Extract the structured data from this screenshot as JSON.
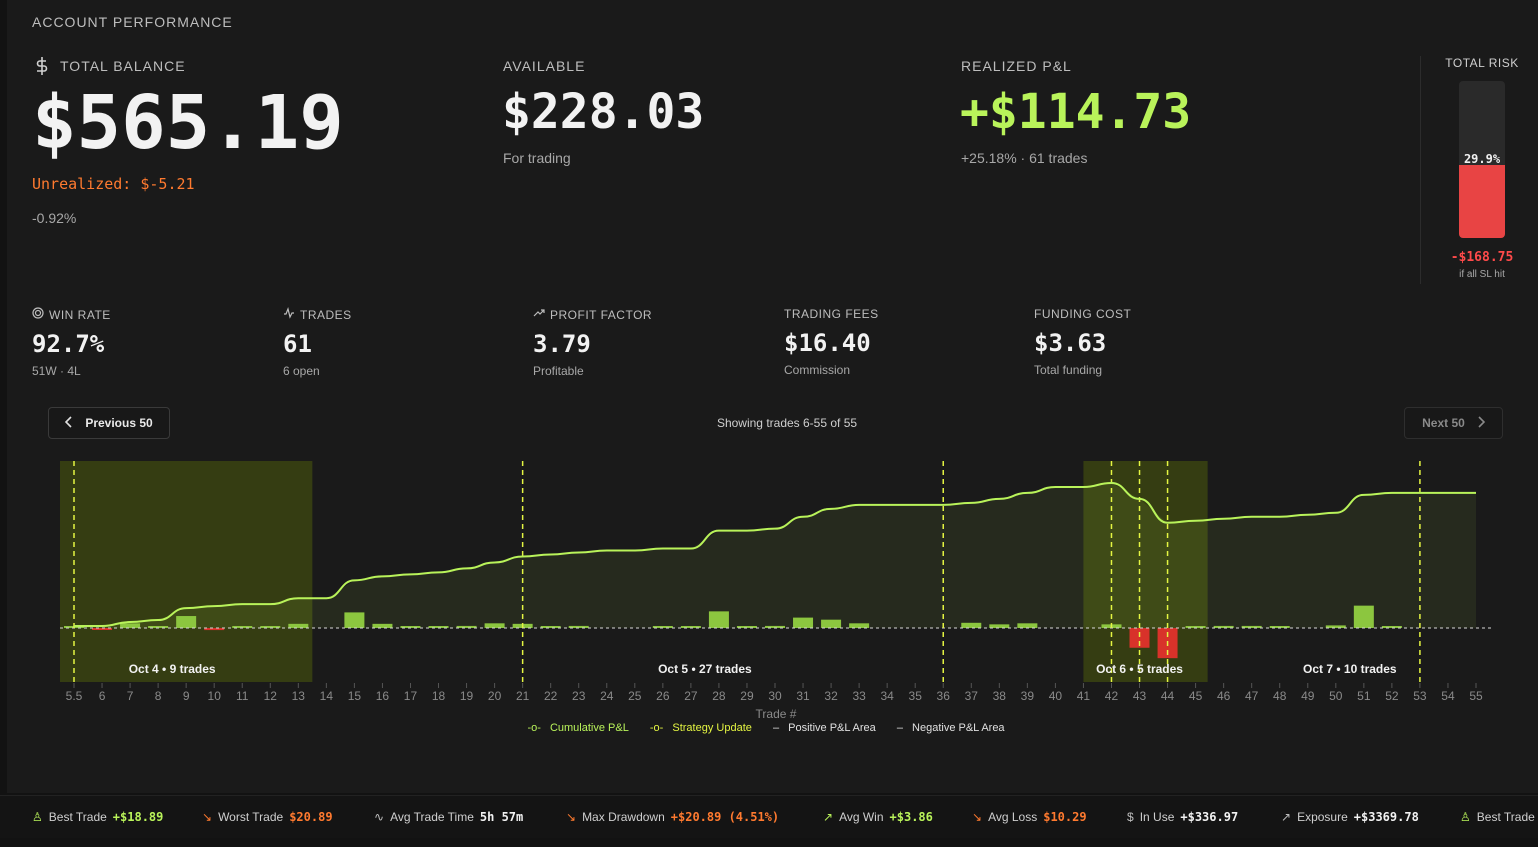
{
  "header": {
    "title": "ACCOUNT PERFORMANCE"
  },
  "balance": {
    "label": "TOTAL BALANCE",
    "value": "$565.19",
    "unrealized": "Unrealized: $-5.21",
    "change": "-0.92%"
  },
  "available": {
    "label": "AVAILABLE",
    "value": "$228.03",
    "sub": "For trading"
  },
  "realized": {
    "label": "REALIZED P&L",
    "value": "+$114.73",
    "sub": "+25.18% · 61 trades"
  },
  "risk": {
    "label": "TOTAL RISK",
    "percent": "29.9%",
    "fill_fraction": 0.299,
    "loss": "-$168.75",
    "note": "if all SL hit"
  },
  "stats": [
    {
      "icon": "target-icon",
      "label": "WIN RATE",
      "value": "92.7%",
      "sub": "51W · 4L"
    },
    {
      "icon": "activity-icon",
      "label": "TRADES",
      "value": "61",
      "sub": "6 open"
    },
    {
      "icon": "trending-up-icon",
      "label": "PROFIT FACTOR",
      "value": "3.79",
      "sub": "Profitable"
    },
    {
      "icon": "",
      "label": "TRADING FEES",
      "value": "$16.40",
      "sub": "Commission"
    },
    {
      "icon": "",
      "label": "FUNDING COST",
      "value": "$3.63",
      "sub": "Total funding"
    }
  ],
  "pager": {
    "prev": "Previous 50",
    "showing": "Showing trades 6-55 of 55",
    "next": "Next 50"
  },
  "colors": {
    "accent_green": "#b9f35a",
    "loss_red": "#d8322a",
    "strategy_yellow": "#e4f542",
    "orange": "#ff7a2f"
  },
  "chart_data": {
    "type": "bar",
    "xlabel": "Trade #",
    "x_ticks": [
      "5.5",
      "6",
      "7",
      "8",
      "9",
      "10",
      "11",
      "12",
      "13",
      "14",
      "15",
      "16",
      "17",
      "18",
      "19",
      "20",
      "21",
      "22",
      "23",
      "24",
      "25",
      "26",
      "27",
      "28",
      "29",
      "30",
      "31",
      "32",
      "33",
      "34",
      "35",
      "36",
      "37",
      "38",
      "39",
      "40",
      "41",
      "42",
      "43",
      "44",
      "45",
      "46",
      "47",
      "48",
      "49",
      "50",
      "51",
      "52",
      "53",
      "54",
      "55"
    ],
    "trade_pnl": [
      0.1,
      -0.3,
      0.9,
      0.3,
      2.3,
      -0.4,
      0.2,
      0.1,
      0.8,
      0,
      3.0,
      0.8,
      0.3,
      0.2,
      0.4,
      0.9,
      0.8,
      0.2,
      0.4,
      0.0,
      0.0,
      0.3,
      0.2,
      3.2,
      0.1,
      0.4,
      2.0,
      1.6,
      0.9,
      0.0,
      0.0,
      0.0,
      1.0,
      0.7,
      0.9,
      0.0,
      0.0,
      0.7,
      -3.8,
      -5.8,
      0.1,
      0.4,
      0.4,
      0.2,
      0.0,
      0.5,
      4.3,
      0.3,
      0.0,
      0.0,
      0.0
    ],
    "cumulative": [
      0,
      0,
      2,
      3,
      9,
      10,
      11,
      11,
      14,
      14,
      23,
      25,
      26,
      27,
      29,
      32,
      35,
      36,
      37,
      38,
      38,
      39,
      39,
      48,
      48,
      49,
      55,
      59,
      61,
      61,
      61,
      61,
      62,
      64,
      67,
      70,
      70,
      72,
      64,
      52,
      53,
      54,
      55,
      55,
      56,
      57,
      66,
      67,
      67,
      67,
      67
    ],
    "sessions": [
      {
        "label": "Oct 4 • 9 trades",
        "highlighted": true
      },
      {
        "label": "Oct 5 • 27 trades",
        "highlighted": false
      },
      {
        "label": "Oct 6 • 5 trades",
        "highlighted": true
      },
      {
        "label": "Oct 7 • 10 trades",
        "highlighted": false
      }
    ],
    "strategy_updates": [
      "5.5",
      "21",
      "36",
      "42",
      "43",
      "44",
      "53"
    ],
    "legend": [
      "Cumulative P&L",
      "Strategy Update",
      "Positive P&L Area",
      "Negative P&L Area"
    ]
  },
  "bottom": [
    {
      "icon": "trophy-icon",
      "label": "Best Trade",
      "value": "+$18.89",
      "color": "#b9f35a"
    },
    {
      "icon": "trending-down-icon",
      "label": "Worst Trade",
      "value": "$20.89",
      "color": "#ff7a2f"
    },
    {
      "icon": "activity-icon",
      "label": "Avg Trade Time",
      "value": "5h 57m",
      "color": "#f2f2f2"
    },
    {
      "icon": "trending-down-icon",
      "label": "Max Drawdown",
      "value": "+$20.89 (4.51%)",
      "color": "#ff7a2f"
    },
    {
      "icon": "trending-up-icon",
      "label": "Avg Win",
      "value": "+$3.86",
      "color": "#b9f35a"
    },
    {
      "icon": "trending-down-icon",
      "label": "Avg Loss",
      "value": "$10.29",
      "color": "#ff7a2f"
    },
    {
      "icon": "dollar-icon",
      "label": "In Use",
      "value": "+$336.97",
      "color": "#f2f2f2"
    },
    {
      "icon": "trending-up-icon",
      "label": "Exposure",
      "value": "+$3369.78",
      "color": "#f2f2f2"
    },
    {
      "icon": "trophy-icon",
      "label": "Best Trade",
      "value": "",
      "color": "#f2f2f2"
    }
  ]
}
